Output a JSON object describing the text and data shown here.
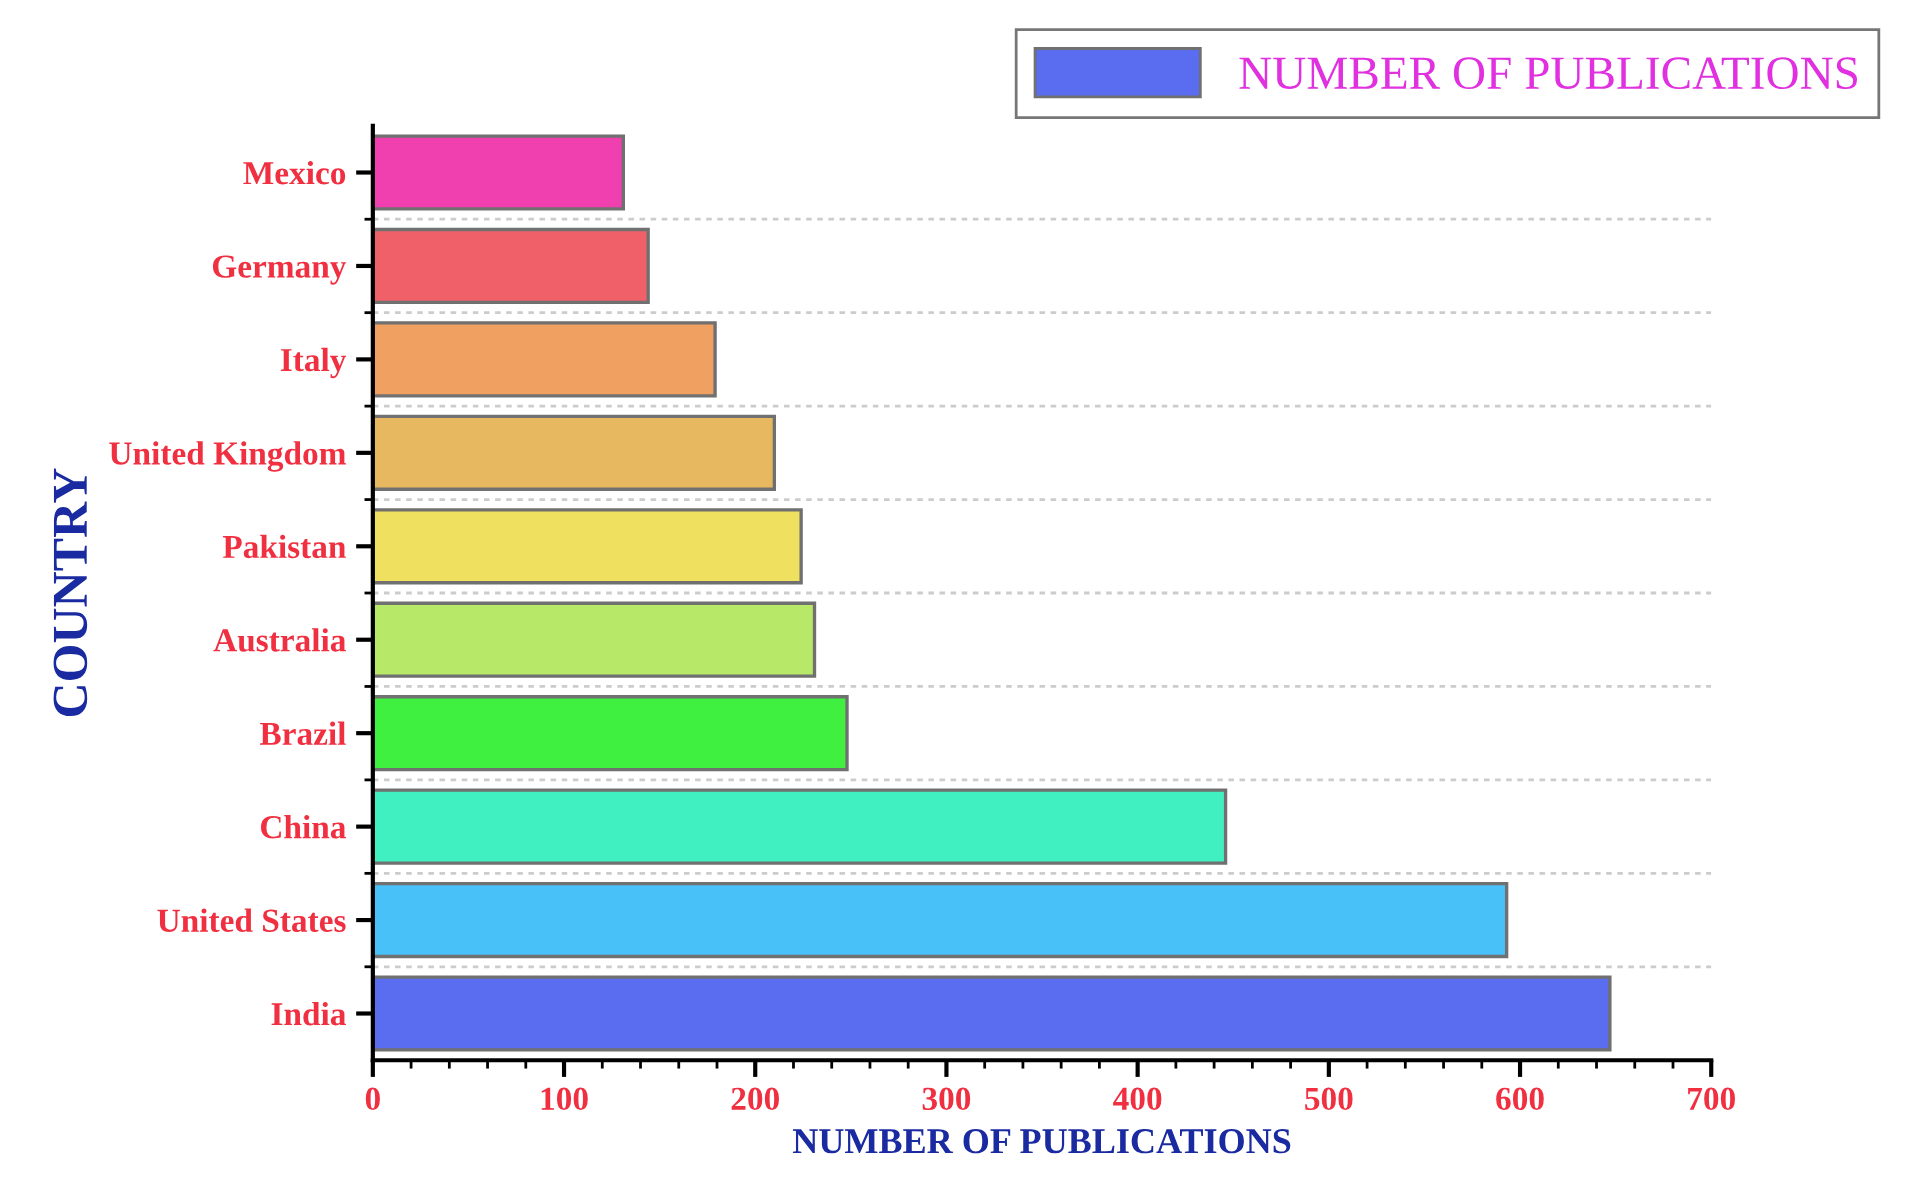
{
  "chart_data": {
    "type": "bar",
    "orientation": "horizontal",
    "categories": [
      "Mexico",
      "Germany",
      "Italy",
      "United Kingdom",
      "Pakistan",
      "Australia",
      "Brazil",
      "China",
      "United States",
      "India"
    ],
    "series": [
      {
        "name": "NUMBER OF PUBLICATIONS",
        "color": "#5a6cf0",
        "colors": [
          "#f040b0",
          "#f06068",
          "#f0a060",
          "#e8b860",
          "#f0e060",
          "#b8e868",
          "#40f040",
          "#40f0c0",
          "#48c0f8",
          "#5a6cf0"
        ],
        "values": [
          131,
          144,
          179,
          210,
          224,
          231,
          248,
          446,
          593,
          647
        ]
      }
    ],
    "xlabel": "NUMBER OF PUBLICATIONS",
    "ylabel": "COUNTRY",
    "xlim": [
      0,
      700
    ],
    "xticks": [
      0,
      100,
      200,
      300,
      400,
      500,
      600,
      700
    ],
    "grid": "y",
    "legend": "top right"
  }
}
